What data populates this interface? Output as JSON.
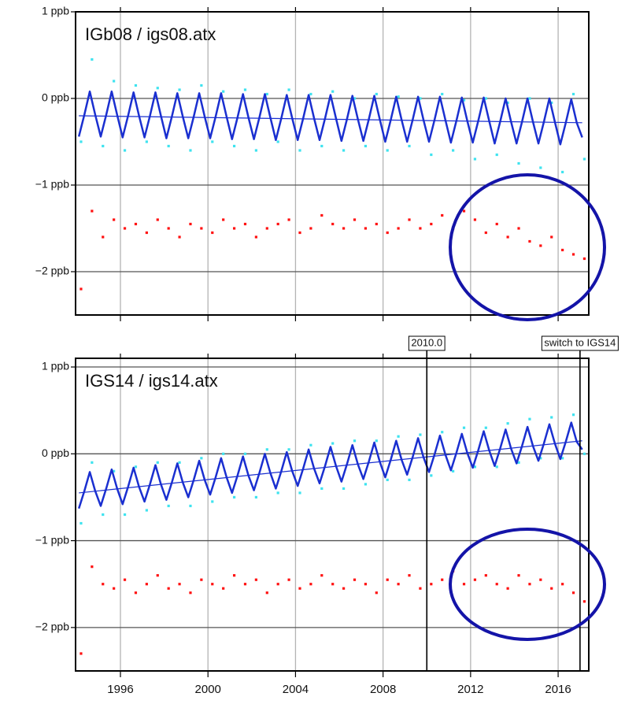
{
  "chart_data": [
    {
      "type": "scatter",
      "title": "IGb08 / igs08.atx",
      "xlim": [
        1993.95,
        2017.4
      ],
      "xticks": [
        1996,
        2000,
        2004,
        2008,
        2012,
        2016
      ],
      "show_xtick_labels": false,
      "ylim": [
        -2.5,
        1.0
      ],
      "yticks": [
        {
          "value": 1,
          "label": "1 ppb"
        },
        {
          "value": 0,
          "label": "0 ppb"
        },
        {
          "value": -1,
          "label": "−1 ppb"
        },
        {
          "value": -2,
          "label": "−2 ppb"
        }
      ],
      "grid": true,
      "x": [
        1994.2,
        1994.7,
        1995.2,
        1995.7,
        1996.2,
        1996.7,
        1997.2,
        1997.7,
        1998.2,
        1998.7,
        1999.2,
        1999.7,
        2000.2,
        2000.7,
        2001.2,
        2001.7,
        2002.2,
        2002.7,
        2003.2,
        2003.7,
        2004.2,
        2004.7,
        2005.2,
        2005.7,
        2006.2,
        2006.7,
        2007.2,
        2007.7,
        2008.2,
        2008.7,
        2009.2,
        2009.7,
        2010.2,
        2010.7,
        2011.2,
        2011.7,
        2012.2,
        2012.7,
        2013.2,
        2013.7,
        2014.2,
        2014.7,
        2015.2,
        2015.7,
        2016.2,
        2016.7,
        2017.2
      ],
      "series": [
        {
          "type": "scatter",
          "color": "#3fe3ef",
          "values": [
            -0.5,
            0.45,
            -0.55,
            0.2,
            -0.6,
            0.15,
            -0.5,
            0.12,
            -0.55,
            0.1,
            -0.6,
            0.15,
            -0.5,
            0.08,
            -0.55,
            0.1,
            -0.6,
            0.05,
            -0.5,
            0.1,
            -0.6,
            0.05,
            -0.55,
            0.08,
            -0.6,
            0.0,
            -0.55,
            0.05,
            -0.6,
            0.02,
            -0.55,
            0.0,
            -0.65,
            0.05,
            -0.6,
            -0.02,
            -0.7,
            0.0,
            -0.65,
            -0.05,
            -0.75,
            0.0,
            -0.8,
            -0.05,
            -0.85,
            0.05,
            -0.7
          ]
        },
        {
          "type": "scatter",
          "color": "#ff1010",
          "values": [
            -2.2,
            -1.3,
            -1.6,
            -1.4,
            -1.5,
            -1.45,
            -1.55,
            -1.4,
            -1.5,
            -1.6,
            -1.45,
            -1.5,
            -1.55,
            -1.4,
            -1.5,
            -1.45,
            -1.6,
            -1.5,
            -1.45,
            -1.4,
            -1.55,
            -1.5,
            -1.35,
            -1.45,
            -1.5,
            -1.4,
            -1.5,
            -1.45,
            -1.55,
            -1.5,
            -1.4,
            -1.5,
            -1.45,
            -1.35,
            -1.5,
            -1.3,
            -1.4,
            -1.55,
            -1.45,
            -1.6,
            -1.5,
            -1.65,
            -1.7,
            -1.6,
            -1.75,
            -1.8,
            -1.85
          ]
        },
        {
          "type": "line",
          "color": "#1a2fd0",
          "line_width": 2.5,
          "x": [
            1994.1,
            1994.35,
            1994.6,
            1994.85,
            1995.1,
            1995.35,
            1995.6,
            1995.85,
            1996.1,
            1996.35,
            1996.6,
            1996.85,
            1997.1,
            1997.35,
            1997.6,
            1997.85,
            1998.1,
            1998.35,
            1998.6,
            1998.85,
            1999.1,
            1999.35,
            1999.6,
            1999.85,
            2000.1,
            2000.35,
            2000.6,
            2000.85,
            2001.1,
            2001.35,
            2001.6,
            2001.85,
            2002.1,
            2002.35,
            2002.6,
            2002.85,
            2003.1,
            2003.35,
            2003.6,
            2003.85,
            2004.1,
            2004.35,
            2004.6,
            2004.85,
            2005.1,
            2005.35,
            2005.6,
            2005.85,
            2006.1,
            2006.35,
            2006.6,
            2006.85,
            2007.1,
            2007.35,
            2007.6,
            2007.85,
            2008.1,
            2008.35,
            2008.6,
            2008.85,
            2009.1,
            2009.35,
            2009.6,
            2009.85,
            2010.1,
            2010.35,
            2010.6,
            2010.85,
            2011.1,
            2011.35,
            2011.6,
            2011.85,
            2012.1,
            2012.35,
            2012.6,
            2012.85,
            2013.1,
            2013.35,
            2013.6,
            2013.85,
            2014.1,
            2014.35,
            2014.6,
            2014.85,
            2015.1,
            2015.35,
            2015.6,
            2015.85,
            2016.1,
            2016.35,
            2016.6,
            2016.85,
            2017.1
          ],
          "values": [
            -0.44,
            -0.19,
            0.08,
            -0.19,
            -0.44,
            -0.19,
            0.08,
            -0.19,
            -0.45,
            -0.2,
            0.07,
            -0.2,
            -0.45,
            -0.2,
            0.07,
            -0.2,
            -0.46,
            -0.21,
            0.06,
            -0.21,
            -0.46,
            -0.21,
            0.06,
            -0.21,
            -0.46,
            -0.21,
            0.06,
            -0.21,
            -0.47,
            -0.22,
            0.05,
            -0.22,
            -0.47,
            -0.22,
            0.05,
            -0.22,
            -0.48,
            -0.23,
            0.04,
            -0.23,
            -0.48,
            -0.23,
            0.04,
            -0.23,
            -0.48,
            -0.23,
            0.04,
            -0.23,
            -0.49,
            -0.24,
            0.03,
            -0.24,
            -0.49,
            -0.24,
            0.03,
            -0.24,
            -0.5,
            -0.25,
            0.02,
            -0.25,
            -0.5,
            -0.25,
            0.02,
            -0.25,
            -0.5,
            -0.25,
            0.02,
            -0.25,
            -0.51,
            -0.26,
            0.01,
            -0.26,
            -0.51,
            -0.26,
            0.01,
            -0.26,
            -0.52,
            -0.27,
            0,
            -0.27,
            -0.52,
            -0.27,
            0,
            -0.27,
            -0.52,
            -0.27,
            0,
            -0.27,
            -0.53,
            -0.28,
            -0.01,
            -0.28,
            -0.45
          ]
        },
        {
          "type": "line",
          "color": "#1a2fd0",
          "line_width": 1.2,
          "x": [
            1994.1,
            2017.1
          ],
          "values": [
            -0.2,
            -0.28
          ]
        }
      ]
    },
    {
      "type": "scatter",
      "title": "IGS14 / igs14.atx",
      "xlim": [
        1993.95,
        2017.4
      ],
      "xticks": [
        1996,
        2000,
        2004,
        2008,
        2012,
        2016
      ],
      "show_xtick_labels": true,
      "ylim": [
        -2.5,
        1.1
      ],
      "yticks": [
        {
          "value": 1,
          "label": "1 ppb"
        },
        {
          "value": 0,
          "label": "0 ppb"
        },
        {
          "value": -1,
          "label": "−1 ppb"
        },
        {
          "value": -2,
          "label": "−2 ppb"
        }
      ],
      "grid": true,
      "annotations": [
        {
          "x": 2010.0,
          "label": "2010.0"
        },
        {
          "x": 2017.0,
          "label": "switch to IGS14"
        }
      ],
      "x": [
        1994.2,
        1994.7,
        1995.2,
        1995.7,
        1996.2,
        1996.7,
        1997.2,
        1997.7,
        1998.2,
        1998.7,
        1999.2,
        1999.7,
        2000.2,
        2000.7,
        2001.2,
        2001.7,
        2002.2,
        2002.7,
        2003.2,
        2003.7,
        2004.2,
        2004.7,
        2005.2,
        2005.7,
        2006.2,
        2006.7,
        2007.2,
        2007.7,
        2008.2,
        2008.7,
        2009.2,
        2009.7,
        2010.2,
        2010.7,
        2011.2,
        2011.7,
        2012.2,
        2012.7,
        2013.2,
        2013.7,
        2014.2,
        2014.7,
        2015.2,
        2015.7,
        2016.2,
        2016.7,
        2017.2
      ],
      "series": [
        {
          "type": "scatter",
          "color": "#3fe3ef",
          "values": [
            -0.8,
            -0.1,
            -0.7,
            -0.2,
            -0.7,
            -0.15,
            -0.65,
            -0.1,
            -0.6,
            -0.1,
            -0.6,
            -0.05,
            -0.55,
            0.0,
            -0.5,
            0.0,
            -0.5,
            0.05,
            -0.45,
            0.05,
            -0.45,
            0.1,
            -0.4,
            0.12,
            -0.4,
            0.15,
            -0.35,
            0.15,
            -0.3,
            0.2,
            -0.3,
            0.22,
            -0.25,
            0.25,
            -0.2,
            0.3,
            -0.15,
            0.3,
            -0.15,
            0.35,
            -0.1,
            0.4,
            -0.05,
            0.42,
            -0.05,
            0.45,
            0.0
          ]
        },
        {
          "type": "scatter",
          "color": "#ff1010",
          "values": [
            -2.3,
            -1.3,
            -1.5,
            -1.55,
            -1.45,
            -1.6,
            -1.5,
            -1.4,
            -1.55,
            -1.5,
            -1.6,
            -1.45,
            -1.5,
            -1.55,
            -1.4,
            -1.5,
            -1.45,
            -1.6,
            -1.5,
            -1.45,
            -1.55,
            -1.5,
            -1.4,
            -1.5,
            -1.55,
            -1.45,
            -1.5,
            -1.6,
            -1.45,
            -1.5,
            -1.4,
            -1.55,
            -1.5,
            -1.45,
            -1.35,
            -1.5,
            -1.45,
            -1.4,
            -1.5,
            -1.55,
            -1.4,
            -1.5,
            -1.45,
            -1.55,
            -1.5,
            -1.6,
            -1.7
          ]
        },
        {
          "type": "line",
          "color": "#1a2fd0",
          "line_width": 2.5,
          "x": [
            1994.1,
            1994.35,
            1994.6,
            1994.85,
            1995.1,
            1995.35,
            1995.6,
            1995.85,
            1996.1,
            1996.35,
            1996.6,
            1996.85,
            1997.1,
            1997.35,
            1997.6,
            1997.85,
            1998.1,
            1998.35,
            1998.6,
            1998.85,
            1999.1,
            1999.35,
            1999.6,
            1999.85,
            2000.1,
            2000.35,
            2000.6,
            2000.85,
            2001.1,
            2001.35,
            2001.6,
            2001.85,
            2002.1,
            2002.35,
            2002.6,
            2002.85,
            2003.1,
            2003.35,
            2003.6,
            2003.85,
            2004.1,
            2004.35,
            2004.6,
            2004.85,
            2005.1,
            2005.35,
            2005.6,
            2005.85,
            2006.1,
            2006.35,
            2006.6,
            2006.85,
            2007.1,
            2007.35,
            2007.6,
            2007.85,
            2008.1,
            2008.35,
            2008.6,
            2008.85,
            2009.1,
            2009.35,
            2009.6,
            2009.85,
            2010.1,
            2010.35,
            2010.6,
            2010.85,
            2011.1,
            2011.35,
            2011.6,
            2011.85,
            2012.1,
            2012.35,
            2012.6,
            2012.85,
            2013.1,
            2013.35,
            2013.6,
            2013.85,
            2014.1,
            2014.35,
            2014.6,
            2014.85,
            2015.1,
            2015.35,
            2015.6,
            2015.85,
            2016.1,
            2016.35,
            2016.6,
            2016.85,
            2017.1
          ],
          "values": [
            -0.63,
            -0.43,
            -0.21,
            -0.43,
            -0.6,
            -0.4,
            -0.18,
            -0.4,
            -0.58,
            -0.38,
            -0.16,
            -0.38,
            -0.55,
            -0.35,
            -0.13,
            -0.35,
            -0.53,
            -0.33,
            -0.11,
            -0.33,
            -0.5,
            -0.3,
            -0.08,
            -0.3,
            -0.47,
            -0.27,
            -0.05,
            -0.27,
            -0.45,
            -0.25,
            -0.03,
            -0.25,
            -0.42,
            -0.22,
            0,
            -0.22,
            -0.4,
            -0.2,
            0.02,
            -0.2,
            -0.37,
            -0.17,
            0.05,
            -0.17,
            -0.34,
            -0.14,
            0.08,
            -0.14,
            -0.32,
            -0.12,
            0.1,
            -0.12,
            -0.29,
            -0.09,
            0.13,
            -0.09,
            -0.27,
            -0.07,
            0.15,
            -0.07,
            -0.24,
            -0.04,
            0.18,
            -0.04,
            -0.21,
            -0.01,
            0.21,
            -0.01,
            -0.19,
            0.01,
            0.23,
            0.01,
            -0.16,
            0.04,
            0.26,
            0.04,
            -0.14,
            0.06,
            0.28,
            0.06,
            -0.11,
            0.09,
            0.31,
            0.09,
            -0.08,
            0.12,
            0.34,
            0.12,
            -0.06,
            0.14,
            0.36,
            0.14,
            0.05
          ]
        },
        {
          "type": "line",
          "color": "#1a2fd0",
          "line_width": 1.2,
          "x": [
            1994.1,
            2017.1
          ],
          "values": [
            -0.45,
            0.15
          ]
        }
      ]
    }
  ]
}
